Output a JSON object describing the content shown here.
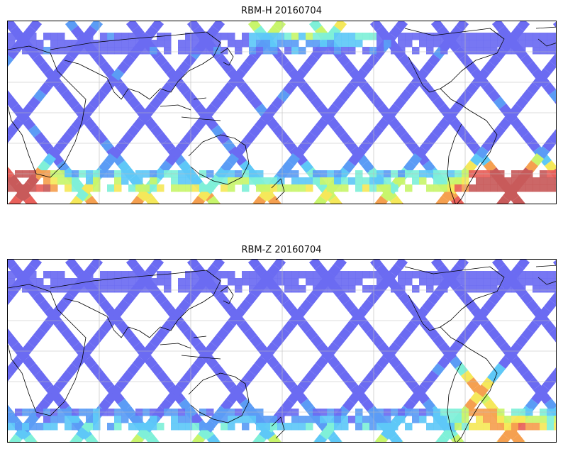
{
  "panels": [
    {
      "title": "RBM-H 20160704",
      "variant": "H"
    },
    {
      "title": "RBM-Z 20160704",
      "variant": "Z"
    }
  ],
  "colormap": [
    "#6b6bf2",
    "#5b9cf5",
    "#5ec8f7",
    "#7ff0d8",
    "#c8f56c",
    "#f5e85a",
    "#f5a050",
    "#e8605a",
    "#c85a5a"
  ],
  "map": {
    "land_outline_color": "#000000",
    "gridline_color": "#bbbbbb",
    "track_color": "#6b6bf2"
  }
}
